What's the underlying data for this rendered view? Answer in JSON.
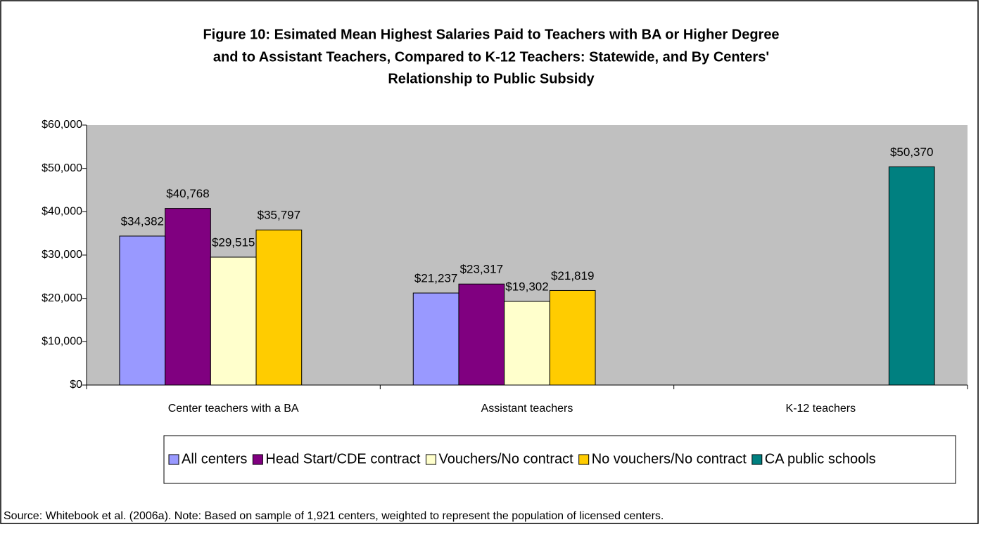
{
  "chart_data": {
    "type": "bar",
    "title": [
      "Figure 10: Esimated Mean Highest Salaries Paid to Teachers with BA or Higher Degree",
      "and to Assistant Teachers, Compared to K-12 Teachers: Statewide, and By Centers'",
      "Relationship to Public Subsidy"
    ],
    "categories": [
      "Center teachers with a BA",
      "Assistant teachers",
      "K-12 teachers"
    ],
    "series": [
      {
        "name": "All centers",
        "color": "#9999FF",
        "values": [
          34382,
          21237,
          null
        ],
        "value_labels": [
          "$34,382",
          "$21,237",
          null
        ]
      },
      {
        "name": "Head Start/CDE contract",
        "color": "#800080",
        "values": [
          40768,
          23317,
          null
        ],
        "value_labels": [
          "$40,768",
          "$23,317",
          null
        ]
      },
      {
        "name": "Vouchers/No contract",
        "color": "#FFFFCC",
        "values": [
          29515,
          19302,
          null
        ],
        "value_labels": [
          "$29,515",
          "$19,302",
          null
        ]
      },
      {
        "name": "No vouchers/No contract",
        "color": "#FFCC00",
        "values": [
          35797,
          21819,
          null
        ],
        "value_labels": [
          "$35,797",
          "$21,819",
          null
        ]
      },
      {
        "name": "CA public schools",
        "color": "#008080",
        "values": [
          null,
          null,
          50370
        ],
        "value_labels": [
          null,
          null,
          "$50,370"
        ]
      }
    ],
    "ylim": [
      0,
      60000
    ],
    "yticks": [
      {
        "value": 0,
        "label": "$0"
      },
      {
        "value": 10000,
        "label": "$10,000"
      },
      {
        "value": 20000,
        "label": "$20,000"
      },
      {
        "value": 30000,
        "label": "$30,000"
      },
      {
        "value": 40000,
        "label": "$40,000"
      },
      {
        "value": 50000,
        "label": "$50,000"
      },
      {
        "value": 60000,
        "label": "$60,000"
      }
    ],
    "note": "Source: Whitebook et al. (2006a). Note: Based on sample of 1,921 centers, weighted to represent the population of licensed centers.",
    "plot_background": "#C0C0C0",
    "legend": "bottom"
  }
}
